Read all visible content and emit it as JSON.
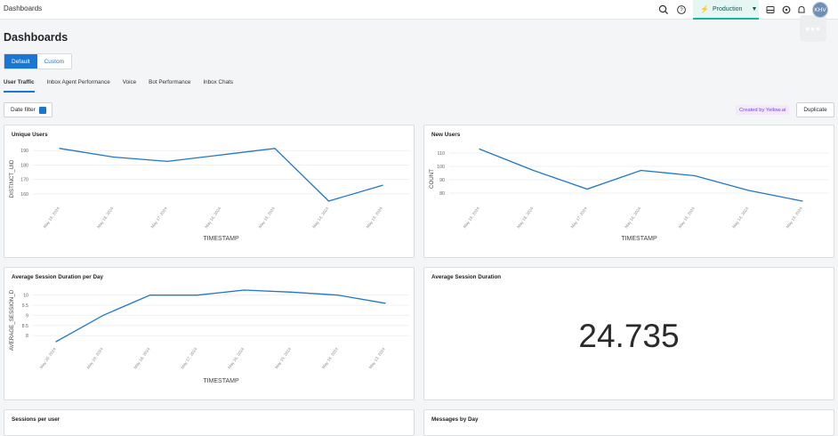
{
  "topbar": {
    "breadcrumb": "Dashboards",
    "environment": "Production",
    "avatar_initials": "KHV",
    "icons": [
      "search-icon",
      "help-icon",
      "inbox-icon",
      "settings-icon",
      "bell-icon"
    ]
  },
  "page": {
    "title": "Dashboards"
  },
  "segment": {
    "default_label": "Default",
    "custom_label": "Custom"
  },
  "tabs": [
    "User Traffic",
    "Inbox Agent Performance",
    "Voice",
    "Bot Performance",
    "Inbox Chats"
  ],
  "toolbar": {
    "date_filter_label": "Date filter",
    "created_by": "Created by Yellow.ai",
    "duplicate_label": "Duplicate"
  },
  "colors": {
    "accent": "#1976d2",
    "line": "#1f77c9",
    "env_bg": "#e6f6f3",
    "badge": "#7c3aed"
  },
  "cards": {
    "unique_users": {
      "title": "Unique Users"
    },
    "new_users": {
      "title": "New Users"
    },
    "avg_session_per_day": {
      "title": "Average Session Duration per Day"
    },
    "avg_session": {
      "title": "Average Session Duration",
      "value": "24.735"
    },
    "sessions_per_user": {
      "title": "Sessions per user"
    },
    "messages_by_day": {
      "title": "Messages by Day"
    }
  },
  "chart_data": [
    {
      "type": "line",
      "title": "Unique Users",
      "xlabel": "TIMESTAMP",
      "ylabel": "DISTINCT_UID",
      "x": [
        "May 19, 2024",
        "May 18, 2024",
        "May 17, 2024",
        "May 16, 2024",
        "May 15, 2024",
        "May 14, 2024",
        "May 13, 2024"
      ],
      "values": [
        191.5,
        185.5,
        182.5,
        187,
        191.5,
        155,
        166
      ],
      "yticks": [
        160,
        170,
        180,
        190
      ],
      "ylim": [
        155,
        192
      ]
    },
    {
      "type": "line",
      "title": "New Users",
      "xlabel": "TIMESTAMP",
      "ylabel": "COUNT",
      "x": [
        "May 19, 2024",
        "May 18, 2024",
        "May 17, 2024",
        "May 16, 2024",
        "May 15, 2024",
        "May 14, 2024",
        "May 13, 2024"
      ],
      "values": [
        113,
        97,
        83,
        97,
        93,
        82,
        74
      ],
      "yticks": [
        80,
        90,
        100,
        110
      ],
      "ylim": [
        74,
        114
      ]
    },
    {
      "type": "line",
      "title": "Average Session Duration per Day",
      "xlabel": "TIMESTAMP",
      "ylabel": "AVERAGE_SESSION_D",
      "x": [
        "May 20, 2024",
        "May 19, 2024",
        "May 18, 2024",
        "May 17, 2024",
        "May 16, 2024",
        "May 15, 2024",
        "May 14, 2024",
        "May 13, 2024"
      ],
      "values": [
        7.7,
        9.0,
        10.0,
        10.0,
        10.25,
        10.15,
        10.0,
        9.6
      ],
      "yticks": [
        8,
        8.5,
        9,
        9.5,
        10
      ],
      "yticklabels": [
        "8",
        "8.5",
        "9",
        "9.5",
        "10"
      ],
      "ylim": [
        7.7,
        10.25
      ]
    }
  ]
}
